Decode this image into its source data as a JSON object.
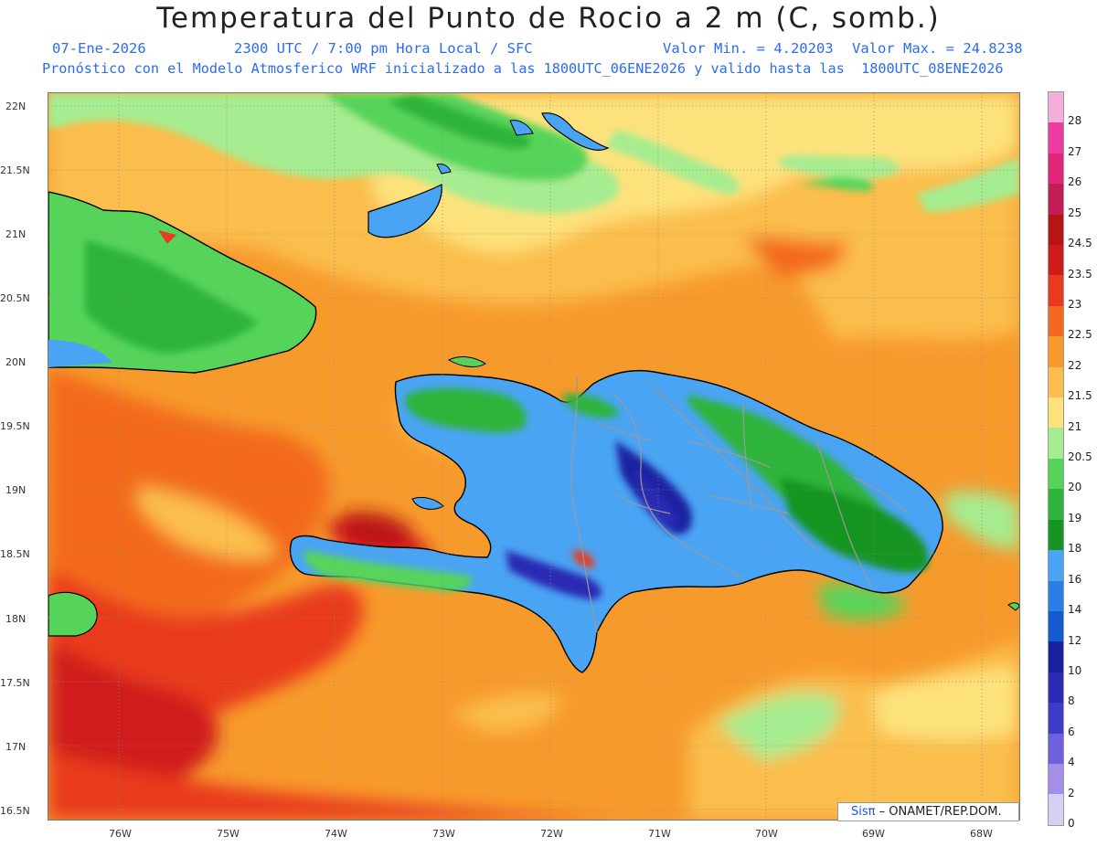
{
  "header": {
    "title": "Temperatura del Punto de Rocio a 2 m (C, somb.)",
    "date": "07-Ene-2026",
    "time_line": "2300 UTC / 7:00 pm Hora Local / SFC",
    "vmin": "Valor Min. = 4.20203",
    "vmax": "Valor Max. = 24.8238",
    "model_line": "Pronóstico con el Modelo Atmosferico WRF inicializado a las 1800UTC_06ENE2026 y valido hasta las  1800UTC_08ENE2026"
  },
  "axes": {
    "lat_labels": [
      "22N",
      "21.5N",
      "21N",
      "20.5N",
      "20N",
      "19.5N",
      "19N",
      "18.5N",
      "18N",
      "17.5N",
      "17N",
      "16.5N"
    ],
    "lon_labels": [
      "76W",
      "75W",
      "74W",
      "73W",
      "72W",
      "71W",
      "70W",
      "69W",
      "68W"
    ]
  },
  "credit": {
    "brand": "Sisπ",
    "org": "– ONAMET/REP.DOM."
  },
  "colorbar": {
    "labels": [
      "28",
      "27",
      "26",
      "25",
      "24.5",
      "23.5",
      "23",
      "22.5",
      "22",
      "21.5",
      "21",
      "20.5",
      "20",
      "19",
      "18",
      "16",
      "14",
      "12",
      "10",
      "8",
      "6",
      "4",
      "2",
      "0"
    ],
    "colors": [
      "#f4aedb",
      "#ef3aa4",
      "#e2267a",
      "#c21e54",
      "#b81414",
      "#d01b1b",
      "#e93a1e",
      "#f36a1e",
      "#f79a2c",
      "#fbbd4c",
      "#fde27c",
      "#a6ec90",
      "#56d45a",
      "#2eb43a",
      "#159422",
      "#4aa4f4",
      "#2a7ee6",
      "#145ad0",
      "#1a20a0",
      "#2a2ab4",
      "#3c3cc8",
      "#6e60dc",
      "#a58ee8",
      "#d6d0f4"
    ]
  }
}
